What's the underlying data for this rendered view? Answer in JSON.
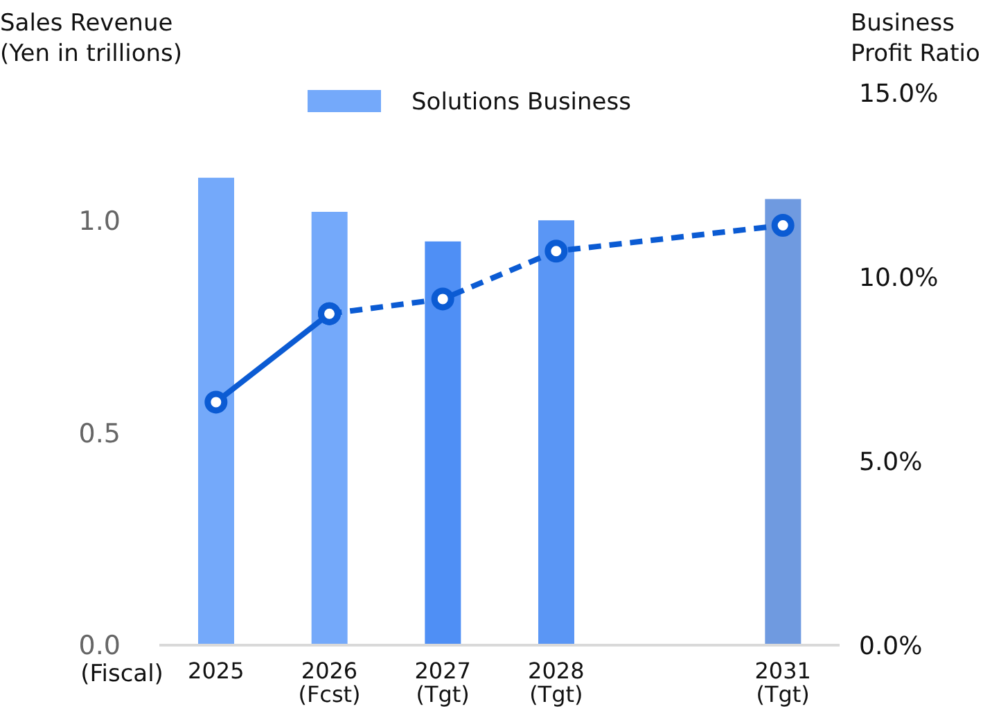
{
  "chart_data": {
    "type": "bar",
    "ylabel": "Sales Revenue\n(Yen in trillions)",
    "y2label": "Business\nProfit Ratio",
    "xlabel": "(Fiscal)",
    "categories": [
      "2025",
      "2026\n(Fcst)",
      "2027\n(Tgt)",
      "2028\n(Tgt)",
      null,
      "2031\n(Tgt)"
    ],
    "series": [
      {
        "name": "Solutions Business",
        "color": "#74a9fa",
        "colors": [
          "#74a9fa",
          "#74a9fa",
          "#4f8ff5",
          "#5a96f5",
          null,
          "#6f9ae0"
        ],
        "values": [
          1.1,
          1.02,
          0.95,
          1.0,
          null,
          1.05
        ]
      },
      {
        "type": "line",
        "axis": "y2",
        "color": "#0b5bd3",
        "line_style": "solid",
        "values": [
          6.6,
          9.0,
          null,
          null,
          null,
          null
        ]
      },
      {
        "type": "line",
        "axis": "y2",
        "color": "#0b5bd3",
        "line_style": "dashed",
        "values": [
          null,
          9.0,
          9.4,
          10.7,
          null,
          11.4
        ]
      }
    ],
    "ylim": [
      0,
      1.3
    ],
    "yticks": [
      {
        "value": 0,
        "label": "0.0"
      },
      {
        "value": 0.5,
        "label": "0.5"
      },
      {
        "value": 1,
        "label": "1.0"
      }
    ],
    "y2lim": [
      0,
      15
    ],
    "y2ticks": [
      {
        "value": 0,
        "label": "0.0%"
      },
      {
        "value": 5,
        "label": "5.0%"
      },
      {
        "value": 10,
        "label": "10.0%"
      },
      {
        "value": 15,
        "label": "15.0%"
      }
    ],
    "marker": "circle",
    "legend": "top",
    "grid": false
  }
}
